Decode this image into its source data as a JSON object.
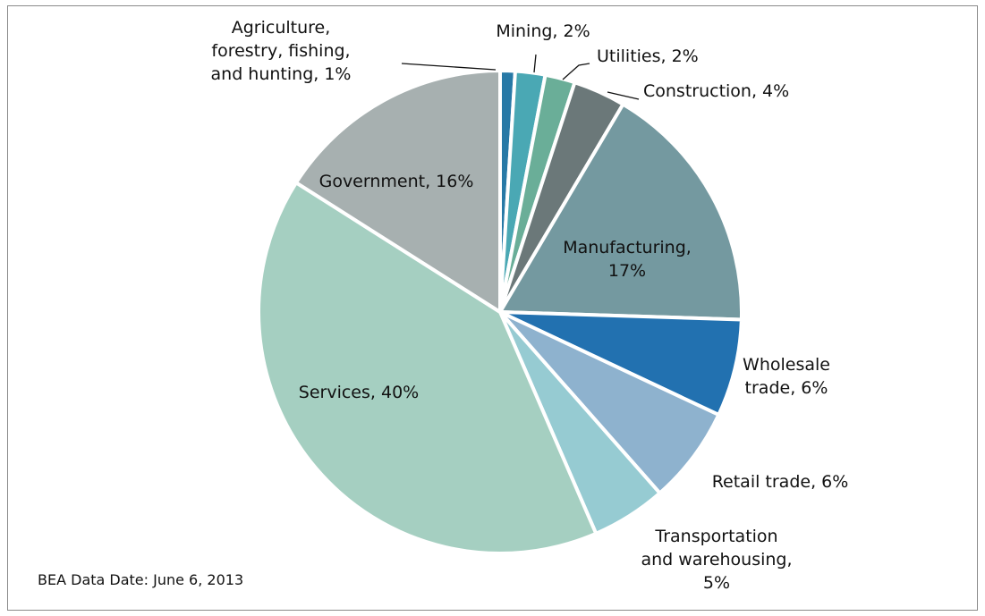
{
  "chart_data": {
    "type": "pie",
    "note": "BEA Data Date: June 6, 2013",
    "slices": [
      {
        "label": "Agriculture, forestry, fishing, and hunting, 1%",
        "lines": [
          "Agriculture,",
          "forestry, fishing,",
          "and hunting, 1%"
        ],
        "value": 1,
        "color": "#2779a6"
      },
      {
        "label": "Mining, 2%",
        "lines": [
          "Mining, 2%"
        ],
        "value": 2,
        "color": "#4aa8b4"
      },
      {
        "label": "Utilities, 2%",
        "lines": [
          "Utilities, 2%"
        ],
        "value": 2,
        "color": "#6aae98"
      },
      {
        "label": "Construction, 4%",
        "lines": [
          "Construction, 4%"
        ],
        "value": 3.5,
        "color": "#6b7879"
      },
      {
        "label": "Manufacturing, 17%",
        "lines": [
          "Manufacturing,",
          "17%"
        ],
        "value": 17,
        "color": "#7499a0"
      },
      {
        "label": "Wholesale trade, 6%",
        "lines": [
          "Wholesale",
          "trade, 6%"
        ],
        "value": 6.5,
        "color": "#2271b0"
      },
      {
        "label": "Retail trade, 6%",
        "lines": [
          "Retail trade, 6%"
        ],
        "value": 6.5,
        "color": "#8eb2ce"
      },
      {
        "label": "Transportation and warehousing, 5%",
        "lines": [
          "Transportation",
          "and warehousing,",
          "5%"
        ],
        "value": 5,
        "color": "#96cbd2"
      },
      {
        "label": "Services, 40%",
        "lines": [
          "Services, 40%"
        ],
        "value": 40.5,
        "color": "#a5cfc1"
      },
      {
        "label": "Government, 16%",
        "lines": [
          "Government, 16%"
        ],
        "value": 16,
        "color": "#a7b0b0"
      }
    ]
  }
}
